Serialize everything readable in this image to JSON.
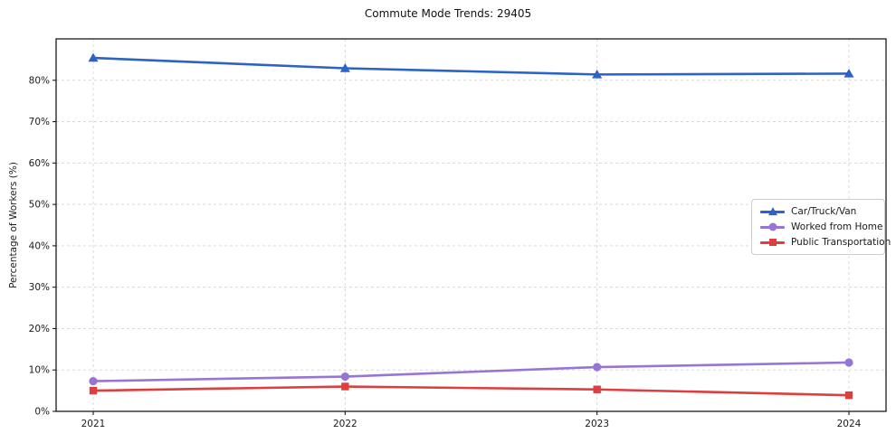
{
  "title": "Commute Mode Trends: 29405",
  "chart_data": {
    "type": "line",
    "title": "Commute Mode Trends: 29405",
    "xlabel": "",
    "ylabel": "Percentage of Workers (%)",
    "x": [
      "2021",
      "2022",
      "2023",
      "2024"
    ],
    "series": [
      {
        "name": "Car/Truck/Van",
        "color": "#2d62c6",
        "marker": "triangle",
        "values": [
          85.4,
          82.9,
          81.4,
          81.6
        ]
      },
      {
        "name": "Worked from Home",
        "color": "#9775d3",
        "marker": "circle",
        "values": [
          7.3,
          8.4,
          10.7,
          11.8
        ]
      },
      {
        "name": "Public Transportation",
        "color": "#de3e3e",
        "marker": "square",
        "values": [
          5.0,
          6.0,
          5.3,
          3.9
        ]
      }
    ],
    "ylim": [
      0,
      90
    ],
    "yticks": [
      0,
      10,
      20,
      30,
      40,
      50,
      60,
      70,
      80
    ],
    "ytick_suffix": "%",
    "grid": true,
    "legend_position": "right-middle"
  }
}
